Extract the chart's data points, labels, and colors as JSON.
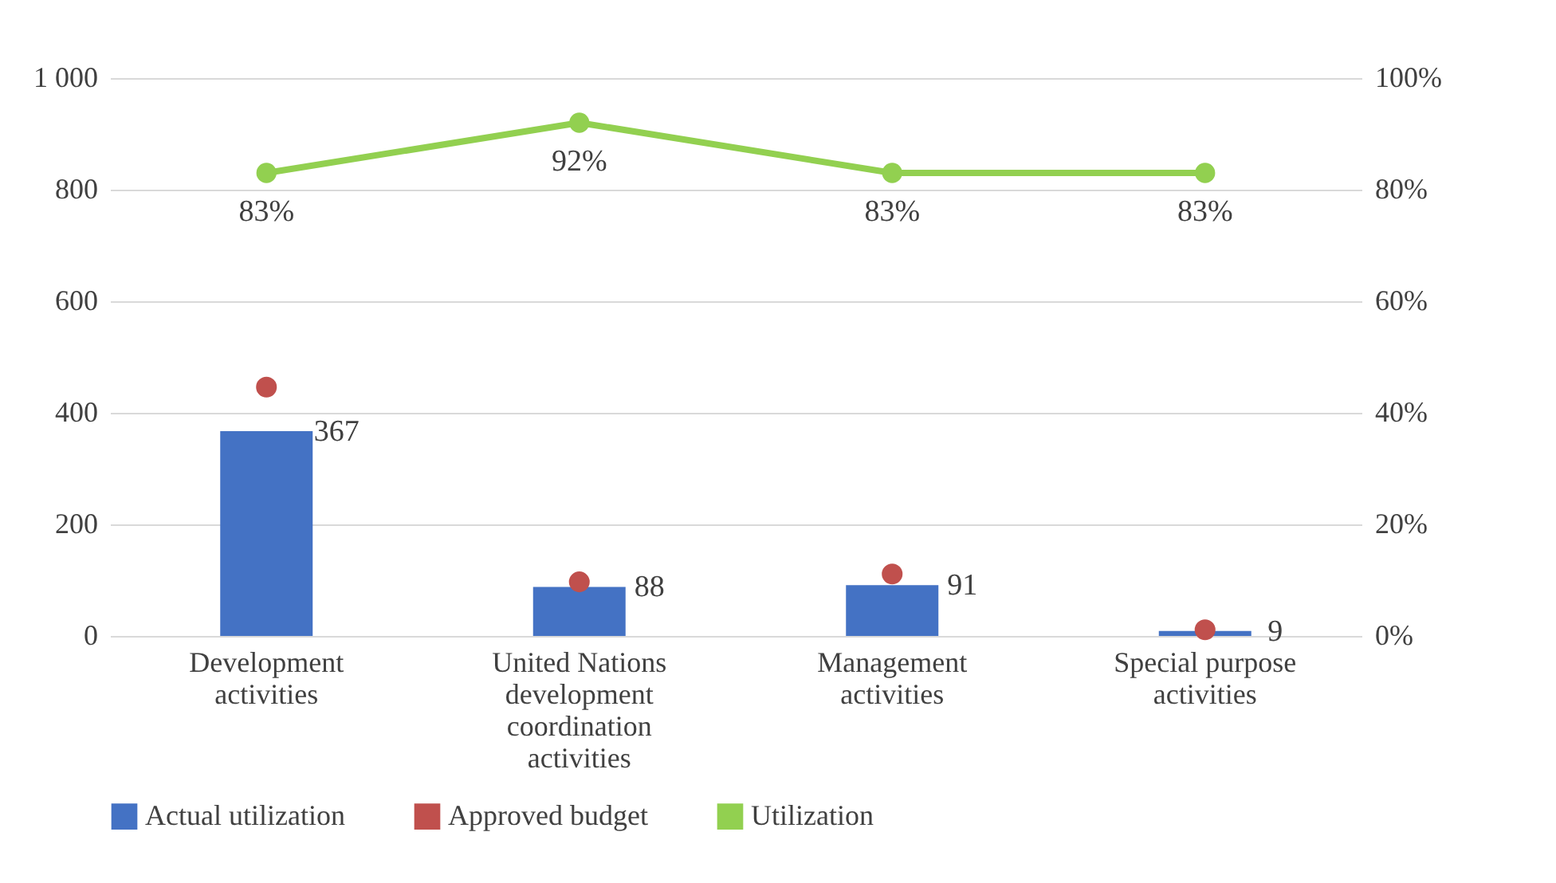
{
  "chart_data": {
    "type": "bar",
    "categories": [
      "Development activities",
      "United Nations development coordination activities",
      "Management activities",
      "Special purpose activities"
    ],
    "series": [
      {
        "name": "Actual utilization",
        "color": "#4472c4",
        "values": [
          367,
          88,
          91,
          9
        ],
        "value_labels": [
          "367",
          "88",
          "91",
          "9"
        ]
      },
      {
        "name": "Approved budget",
        "type": "scatter",
        "color": "#c0504d",
        "values": [
          446,
          97,
          111,
          11
        ]
      },
      {
        "name": "Utilization",
        "type": "line",
        "axis": "y2",
        "color": "#92d050",
        "values": [
          83,
          92,
          83,
          83
        ],
        "value_labels": [
          "83%",
          "92%",
          "83%",
          "83%"
        ]
      }
    ],
    "ylim": [
      0,
      1000
    ],
    "yticks": [
      0,
      200,
      400,
      600,
      800,
      {
        "value": 1000,
        "label": "1 000"
      }
    ],
    "y2lim": [
      0,
      100
    ],
    "y2ticks": [
      {
        "value": 0,
        "label": "0%"
      },
      {
        "value": 20,
        "label": "20%"
      },
      {
        "value": 40,
        "label": "40%"
      },
      {
        "value": 60,
        "label": "60%"
      },
      {
        "value": 80,
        "label": "80%"
      },
      {
        "value": 100,
        "label": "100%"
      }
    ],
    "grid": "y",
    "legend": "bottom",
    "marker": "circle",
    "line_style": "solid"
  }
}
